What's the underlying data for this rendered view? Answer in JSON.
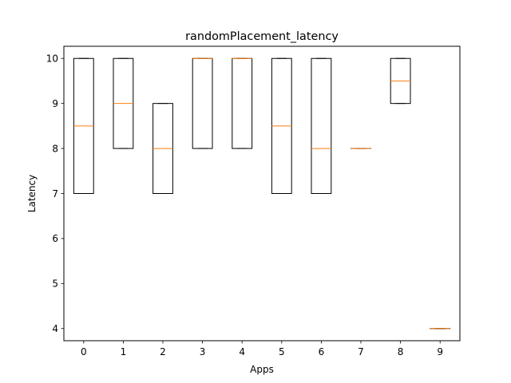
{
  "chart_data": {
    "type": "box",
    "title": "randomPlacement_latency",
    "xlabel": "Apps",
    "ylabel": "Latency",
    "categories": [
      "0",
      "1",
      "2",
      "3",
      "4",
      "5",
      "6",
      "7",
      "8",
      "9"
    ],
    "boxes": [
      {
        "q1": 7,
        "median": 8.5,
        "q3": 10,
        "whisker_low": 7,
        "whisker_high": 10
      },
      {
        "q1": 8,
        "median": 9,
        "q3": 10,
        "whisker_low": 8,
        "whisker_high": 10
      },
      {
        "q1": 7,
        "median": 8,
        "q3": 9,
        "whisker_low": 7,
        "whisker_high": 9
      },
      {
        "q1": 8,
        "median": 10,
        "q3": 10,
        "whisker_low": 8,
        "whisker_high": 10
      },
      {
        "q1": 8,
        "median": 10,
        "q3": 10,
        "whisker_low": 8,
        "whisker_high": 10
      },
      {
        "q1": 7,
        "median": 8.5,
        "q3": 10,
        "whisker_low": 7,
        "whisker_high": 10
      },
      {
        "q1": 7,
        "median": 8,
        "q3": 10,
        "whisker_low": 7,
        "whisker_high": 10
      },
      {
        "q1": 8,
        "median": 8,
        "q3": 8,
        "whisker_low": 8,
        "whisker_high": 8
      },
      {
        "q1": 9,
        "median": 9.5,
        "q3": 10,
        "whisker_low": 9,
        "whisker_high": 10
      },
      {
        "q1": 4,
        "median": 4,
        "q3": 4,
        "whisker_low": 4,
        "whisker_high": 4
      }
    ],
    "ylim": [
      3.73,
      10.27
    ],
    "yticks": [
      4,
      5,
      6,
      7,
      8,
      9,
      10
    ],
    "grid": false,
    "legend": "none",
    "colors": {
      "box": "#000000",
      "median": "#ff7f0e",
      "background": "#ffffff"
    }
  }
}
